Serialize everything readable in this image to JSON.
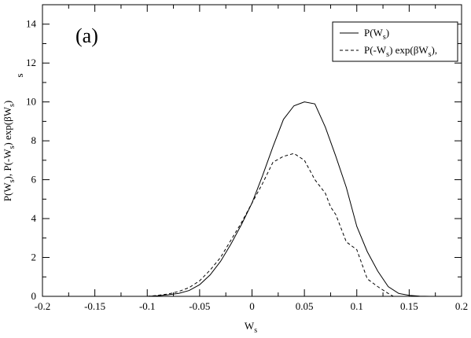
{
  "chart_data": {
    "type": "line",
    "panel_label": "(a)",
    "xlabel": {
      "main": "W",
      "sub": "s"
    },
    "ylabel": "P(W_s), P(-W_s) exp(βW_s)",
    "ylabel_parts": [
      {
        "t": "P(W"
      },
      {
        "t": "s",
        "sub": true
      },
      {
        "t": "), P(-W"
      },
      {
        "t": "s",
        "sub": true
      },
      {
        "t": ") exp(βW"
      },
      {
        "t": "s",
        "sub": true
      },
      {
        "t": ")"
      }
    ],
    "ylabel_stray": "s",
    "xlim": [
      -0.2,
      0.2
    ],
    "ylim": [
      0,
      15
    ],
    "xticks": [
      -0.2,
      -0.15,
      -0.1,
      -0.05,
      0,
      0.05,
      0.1,
      0.15,
      0.2
    ],
    "xtick_labels": [
      "-0.2",
      "-0.15",
      "-0.1",
      "-0.05",
      "0",
      "0.05",
      "0.1",
      "0.15",
      "0.2"
    ],
    "yticks": [
      0,
      2,
      4,
      6,
      8,
      10,
      12,
      14
    ],
    "ytick_labels": [
      "0",
      "2",
      "4",
      "6",
      "8",
      "10",
      "12",
      "14"
    ],
    "grid": false,
    "legend_position": "top-right",
    "series": [
      {
        "name": "P(W_s)",
        "legend_parts": [
          {
            "t": "P(W"
          },
          {
            "t": "s",
            "sub": true
          },
          {
            "t": ")"
          }
        ],
        "style": "solid",
        "x": [
          -0.1,
          -0.09,
          -0.08,
          -0.07,
          -0.06,
          -0.05,
          -0.04,
          -0.03,
          -0.02,
          -0.01,
          0,
          0.01,
          0.02,
          0.03,
          0.04,
          0.05,
          0.06,
          0.07,
          0.08,
          0.09,
          0.1,
          0.11,
          0.12,
          0.13,
          0.14,
          0.15,
          0.16,
          0.17
        ],
        "y": [
          0,
          0.03,
          0.08,
          0.15,
          0.3,
          0.6,
          1.1,
          1.8,
          2.7,
          3.7,
          4.8,
          6.2,
          7.7,
          9.1,
          9.8,
          10.0,
          9.9,
          8.7,
          7.2,
          5.6,
          3.6,
          2.3,
          1.3,
          0.5,
          0.15,
          0.05,
          0.01,
          0
        ]
      },
      {
        "name": "P(-W_s) exp(βW_s),",
        "legend_parts": [
          {
            "t": "P(-W"
          },
          {
            "t": "s",
            "sub": true
          },
          {
            "t": ") exp(βW"
          },
          {
            "t": "s",
            "sub": true
          },
          {
            "t": "),"
          }
        ],
        "style": "dashed",
        "x": [
          -0.1,
          -0.09,
          -0.08,
          -0.07,
          -0.06,
          -0.05,
          -0.04,
          -0.03,
          -0.02,
          -0.01,
          0,
          0.01,
          0.02,
          0.03,
          0.04,
          0.05,
          0.06,
          0.07,
          0.075,
          0.08,
          0.09,
          0.1,
          0.11,
          0.12,
          0.13,
          0.135
        ],
        "y": [
          0,
          0.05,
          0.12,
          0.25,
          0.45,
          0.8,
          1.35,
          2.0,
          2.9,
          3.8,
          4.8,
          5.8,
          6.9,
          7.2,
          7.35,
          7.0,
          6.0,
          5.3,
          4.6,
          4.2,
          2.8,
          2.4,
          0.9,
          0.5,
          0.15,
          0
        ]
      }
    ]
  }
}
